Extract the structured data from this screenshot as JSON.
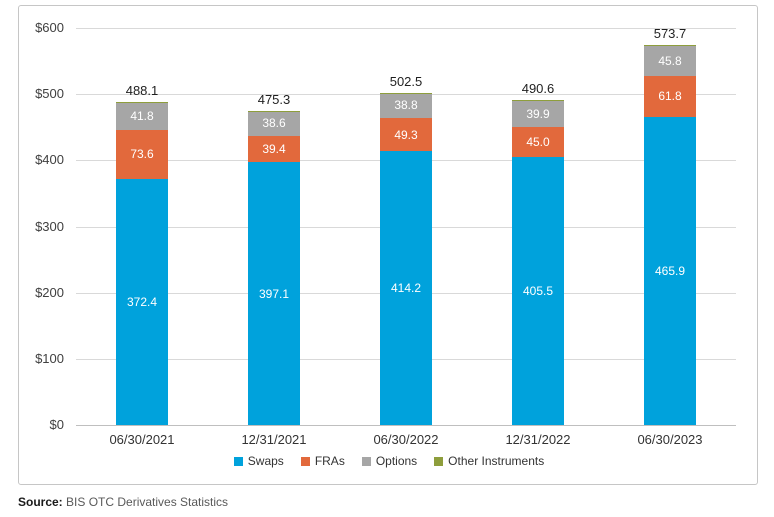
{
  "chart_data": {
    "type": "bar",
    "stacked": true,
    "title": "",
    "xlabel": "",
    "ylabel": "",
    "ylim": [
      0,
      600
    ],
    "grid": true,
    "legend_position": "bottom",
    "categories": [
      "06/30/2021",
      "12/31/2021",
      "06/30/2022",
      "12/31/2022",
      "06/30/2023"
    ],
    "yticks": [
      {
        "value": 600,
        "label": "$600"
      },
      {
        "value": 500,
        "label": "$500"
      },
      {
        "value": 400,
        "label": "$400"
      },
      {
        "value": 300,
        "label": "$300"
      },
      {
        "value": 200,
        "label": "$200"
      },
      {
        "value": 100,
        "label": "$100"
      },
      {
        "value": 0,
        "label": "$0"
      }
    ],
    "series": [
      {
        "name": "Swaps",
        "color": "#00A2DC",
        "values": [
          372.4,
          397.1,
          414.2,
          405.5,
          465.9
        ],
        "labels": [
          "372.4",
          "397.1",
          "414.2",
          "405.5",
          "465.9"
        ]
      },
      {
        "name": "FRAs",
        "color": "#E2693C",
        "values": [
          73.6,
          39.4,
          49.3,
          45.0,
          61.8
        ],
        "labels": [
          "73.6",
          "39.4",
          "49.3",
          "45.0",
          "61.8"
        ]
      },
      {
        "name": "Options",
        "color": "#A6A6A6",
        "values": [
          41.8,
          38.6,
          38.8,
          39.9,
          45.8
        ],
        "labels": [
          "41.8",
          "38.6",
          "38.8",
          "39.9",
          "45.8"
        ]
      },
      {
        "name": "Other Instruments",
        "color": "#8E9E3C",
        "values": [
          0.3,
          0.2,
          0.2,
          0.2,
          0.2
        ],
        "labels": [
          null,
          null,
          null,
          null,
          null
        ]
      }
    ],
    "totals": [
      488.1,
      475.3,
      502.5,
      490.6,
      573.7
    ],
    "total_labels": [
      "488.1",
      "475.3",
      "502.5",
      "490.6",
      "573.7"
    ]
  },
  "source": {
    "label": "Source:",
    "text": " BIS OTC Derivatives Statistics"
  }
}
